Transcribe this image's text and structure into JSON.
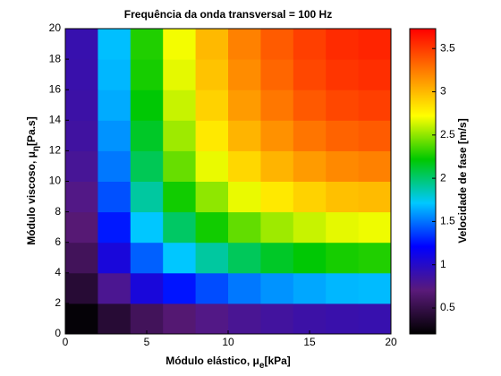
{
  "chart_data": {
    "type": "heatmap",
    "title": "Frequência da onda transversal = 100 Hz",
    "x_label": {
      "text": "Módulo elástico, μ",
      "sub": "e",
      "unit": "[kPa]"
    },
    "y_label": {
      "text": "Módulo viscoso, μ",
      "sub": "η",
      "unit": "[Pa.s]"
    },
    "colorbar_label": "Velocidade de fase [m/s]",
    "x": [
      1,
      3,
      5,
      7,
      9,
      11,
      13,
      15,
      17,
      19
    ],
    "y": [
      1,
      3,
      5,
      7,
      9,
      11,
      13,
      15,
      17,
      19
    ],
    "z": [
      [
        0.23,
        0.42,
        0.57,
        0.67,
        0.75,
        0.8,
        0.84,
        0.87,
        0.89,
        0.9
      ],
      [
        0.42,
        0.79,
        1.07,
        1.26,
        1.4,
        1.51,
        1.58,
        1.63,
        1.67,
        1.68
      ],
      [
        0.57,
        1.07,
        1.45,
        1.71,
        1.9,
        2.04,
        2.14,
        2.21,
        2.26,
        2.28
      ],
      [
        0.68,
        1.27,
        1.71,
        2.02,
        2.25,
        2.41,
        2.53,
        2.61,
        2.67,
        2.69
      ],
      [
        0.75,
        1.41,
        1.9,
        2.25,
        2.5,
        2.68,
        2.81,
        2.9,
        2.97,
        2.99
      ],
      [
        0.81,
        1.51,
        2.05,
        2.42,
        2.68,
        2.88,
        3.02,
        3.12,
        3.19,
        3.22
      ],
      [
        0.85,
        1.58,
        2.14,
        2.53,
        2.81,
        3.02,
        3.16,
        3.27,
        3.34,
        3.37
      ],
      [
        0.87,
        1.64,
        2.21,
        2.61,
        2.9,
        3.12,
        3.26,
        3.38,
        3.45,
        3.48
      ],
      [
        0.89,
        1.67,
        2.26,
        2.67,
        2.96,
        3.18,
        3.33,
        3.45,
        3.52,
        3.55
      ],
      [
        0.9,
        1.69,
        2.28,
        2.7,
        3.0,
        3.22,
        3.37,
        3.48,
        3.56,
        3.59
      ]
    ],
    "xlim": [
      0,
      20
    ],
    "xticks": [
      0,
      5,
      10,
      15,
      20
    ],
    "ylim": [
      0,
      20
    ],
    "yticks": [
      0,
      2,
      4,
      6,
      8,
      10,
      12,
      14,
      16,
      18,
      20
    ],
    "zlim": [
      0.2,
      3.73
    ],
    "zticks": [
      0.5,
      1,
      1.5,
      2,
      2.5,
      3,
      3.5
    ],
    "colormap": [
      "#000000",
      "#5a1a7a",
      "#0000ff",
      "#00c8ff",
      "#00c800",
      "#ffff00",
      "#ff8000",
      "#ff0000"
    ]
  }
}
